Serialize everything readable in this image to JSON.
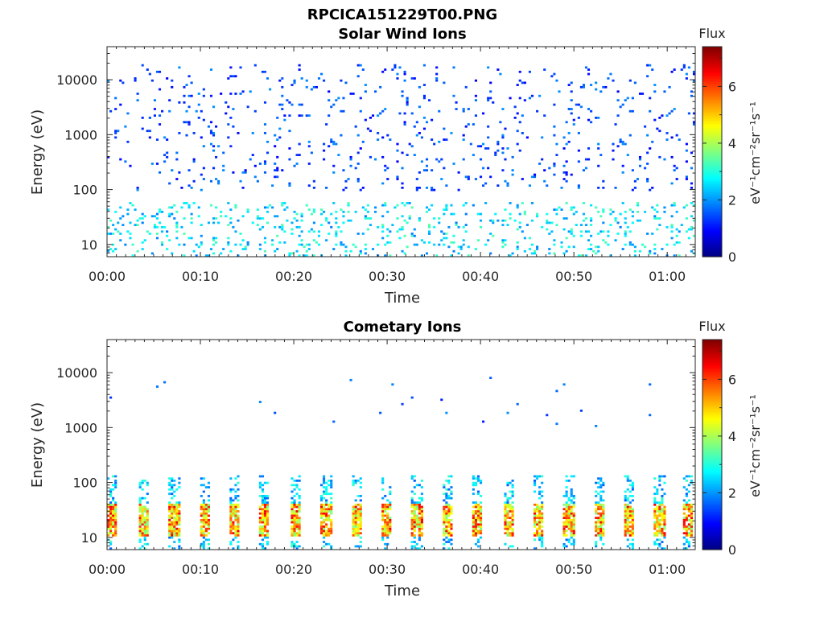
{
  "title": "RPCICA151229T00.PNG",
  "colorbar": {
    "label": "Flux",
    "unit": "eV⁻¹cm⁻²sr⁻¹s⁻¹",
    "ticks": [
      "0",
      "2",
      "4",
      "6"
    ],
    "range": [
      0,
      7.4
    ],
    "colormap": "jet"
  },
  "chart_data": [
    {
      "type": "heatmap",
      "title": "Solar Wind Ions",
      "xlabel": "Time",
      "ylabel": "Energy (eV)",
      "xticks": [
        "00:00",
        "00:10",
        "00:20",
        "00:30",
        "00:40",
        "00:50",
        "01:00"
      ],
      "yticks": [
        "10",
        "100",
        "1000",
        "10000"
      ],
      "xlim_minutes": [
        0,
        63
      ],
      "ylim": [
        6,
        40000
      ],
      "yscale": "log",
      "grid": false,
      "summary": {
        "low_energy_band_eV": [
          6,
          60
        ],
        "low_energy_flux": 2.5,
        "high_energy_band_eV": [
          100,
          20000
        ],
        "high_energy_flux": 1.3
      }
    },
    {
      "type": "heatmap",
      "title": "Cometary Ions",
      "xlabel": "Time",
      "ylabel": "Energy (eV)",
      "xticks": [
        "00:00",
        "00:10",
        "00:20",
        "00:30",
        "00:40",
        "00:50",
        "01:00"
      ],
      "yticks": [
        "10",
        "100",
        "1000",
        "10000"
      ],
      "xlim_minutes": [
        0,
        63
      ],
      "ylim": [
        6,
        40000
      ],
      "yscale": "log",
      "grid": false,
      "periodic_bursts_minutes": [
        0.5,
        3.9,
        7.2,
        10.4,
        13.7,
        16.9,
        20.2,
        23.5,
        26.7,
        30,
        33.2,
        36.5,
        39.7,
        43,
        46.2,
        49.5,
        52.7,
        56,
        59.2,
        62.3
      ],
      "summary": {
        "peak_energy_eV": [
          10,
          40
        ],
        "peak_flux": 6.5,
        "sparse_high_energy_flux": 1.5
      }
    }
  ]
}
